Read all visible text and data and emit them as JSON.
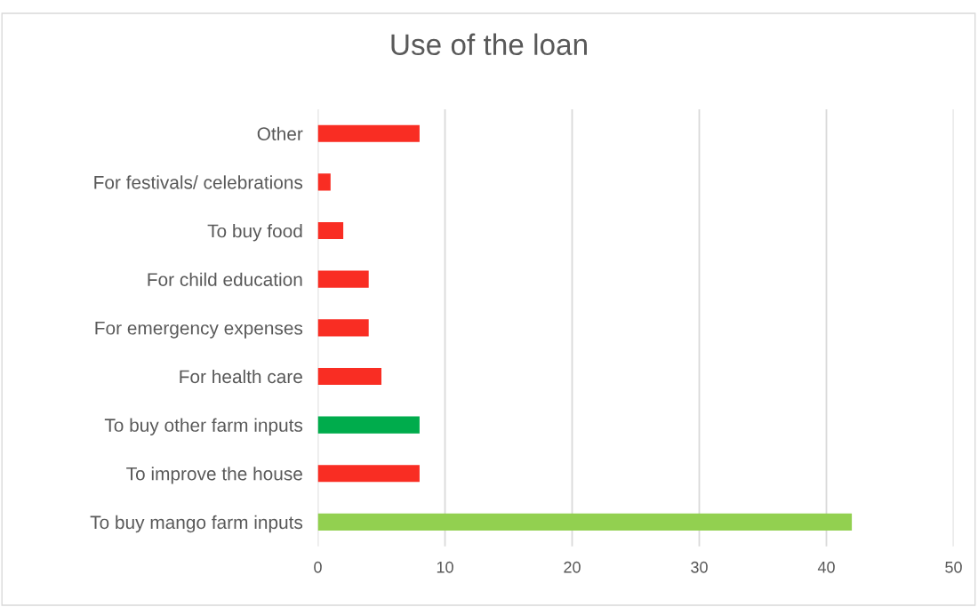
{
  "chart_data": {
    "type": "bar",
    "orientation": "horizontal",
    "title": "Use of the loan",
    "categories": [
      "Other",
      "For festivals/ celebrations",
      "To buy food",
      "For child education",
      "For emergency expenses",
      "For health care",
      "To buy other farm inputs",
      "To improve the house",
      "To buy mango farm inputs"
    ],
    "values": [
      8,
      1,
      2,
      4,
      4,
      5,
      8,
      8,
      42
    ],
    "colors": [
      "#f92d23",
      "#f92d23",
      "#f92d23",
      "#f92d23",
      "#f92d23",
      "#f92d23",
      "#00ac4c",
      "#f92d23",
      "#92d050"
    ],
    "xlim": [
      0,
      50
    ],
    "xticks": [
      0,
      10,
      20,
      30,
      40,
      50
    ],
    "grid": "x",
    "legend": false
  }
}
